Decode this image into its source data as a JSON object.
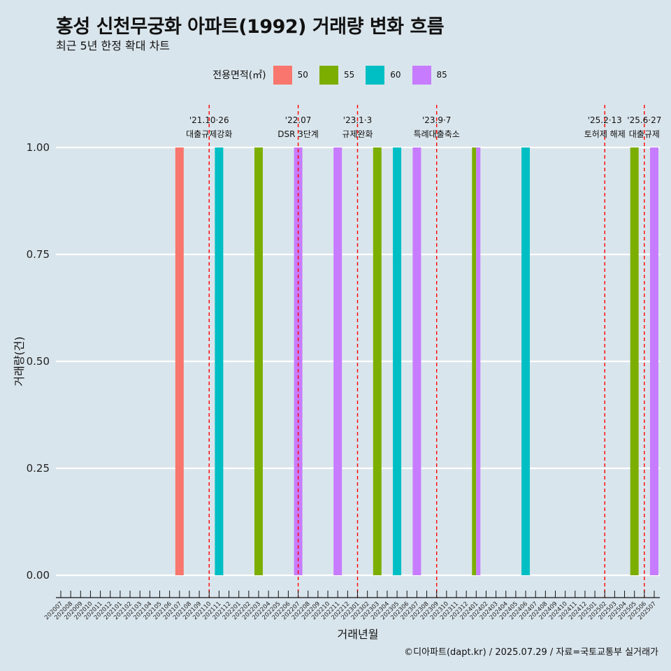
{
  "header": {
    "title": "홍성 신천무궁화 아파트(1992) 거래량 변화 흐름",
    "subtitle": "최근 5년 한정 확대 차트"
  },
  "legend": {
    "title": "전용면적(㎡)",
    "items": [
      {
        "label": "50",
        "color": "#F8766D"
      },
      {
        "label": "55",
        "color": "#7CAE00"
      },
      {
        "label": "60",
        "color": "#00BFC4"
      },
      {
        "label": "85",
        "color": "#C77CFF"
      }
    ]
  },
  "caption": "©디아파트(dapt.kr) / 2025.07.29 / 자료=국토교통부 실거래가",
  "chart_data": {
    "type": "bar",
    "xlabel": "거래년월",
    "ylabel": "거래량(건)",
    "ylim": [
      0,
      1
    ],
    "yticks": [
      "0.00",
      "0.25",
      "0.50",
      "0.75",
      "1.00"
    ],
    "grid": "horizontal",
    "legend_position": "top",
    "categories": [
      "202007",
      "202008",
      "202009",
      "202010",
      "202011",
      "202012",
      "202101",
      "202102",
      "202103",
      "202104",
      "202105",
      "202106",
      "202107",
      "202108",
      "202109",
      "202110",
      "202111",
      "202112",
      "202201",
      "202202",
      "202203",
      "202204",
      "202205",
      "202206",
      "202207",
      "202208",
      "202209",
      "202210",
      "202211",
      "202212",
      "202301",
      "202302",
      "202303",
      "202304",
      "202305",
      "202306",
      "202307",
      "202308",
      "202309",
      "202310",
      "202311",
      "202312",
      "202401",
      "202402",
      "202403",
      "202404",
      "202405",
      "202406",
      "202407",
      "202408",
      "202409",
      "202410",
      "202411",
      "202412",
      "202501",
      "202502",
      "202503",
      "202504",
      "202505",
      "202506",
      "202507"
    ],
    "bars": [
      {
        "month": "202107",
        "area": "50",
        "value": 1
      },
      {
        "month": "202111",
        "area": "60",
        "value": 1
      },
      {
        "month": "202203",
        "area": "55",
        "value": 1
      },
      {
        "month": "202207",
        "area": "85",
        "value": 1
      },
      {
        "month": "202211",
        "area": "85",
        "value": 1
      },
      {
        "month": "202303",
        "area": "55",
        "value": 1
      },
      {
        "month": "202305",
        "area": "60",
        "value": 1
      },
      {
        "month": "202307",
        "area": "85",
        "value": 1
      },
      {
        "month": "202401",
        "area": "55",
        "value": 1
      },
      {
        "month": "202401",
        "area": "85",
        "value": 1
      },
      {
        "month": "202406",
        "area": "60",
        "value": 1
      },
      {
        "month": "202505",
        "area": "55",
        "value": 1
      },
      {
        "month": "202507",
        "area": "85",
        "value": 1
      }
    ],
    "events": [
      {
        "month": "202110",
        "date": "'21.10·26",
        "label": "대출규제강화"
      },
      {
        "month": "202207",
        "date": "'22.07",
        "label": "DSR 3단계"
      },
      {
        "month": "202301",
        "date": "'23.1·3",
        "label": "규제완화"
      },
      {
        "month": "202309",
        "date": "'23.9·7",
        "label": "특례대출축소"
      },
      {
        "month": "202502",
        "date": "'25.2·13",
        "label": "토허제 해제"
      },
      {
        "month": "202506",
        "date": "'25.6·27",
        "label": "대출규제"
      }
    ]
  }
}
